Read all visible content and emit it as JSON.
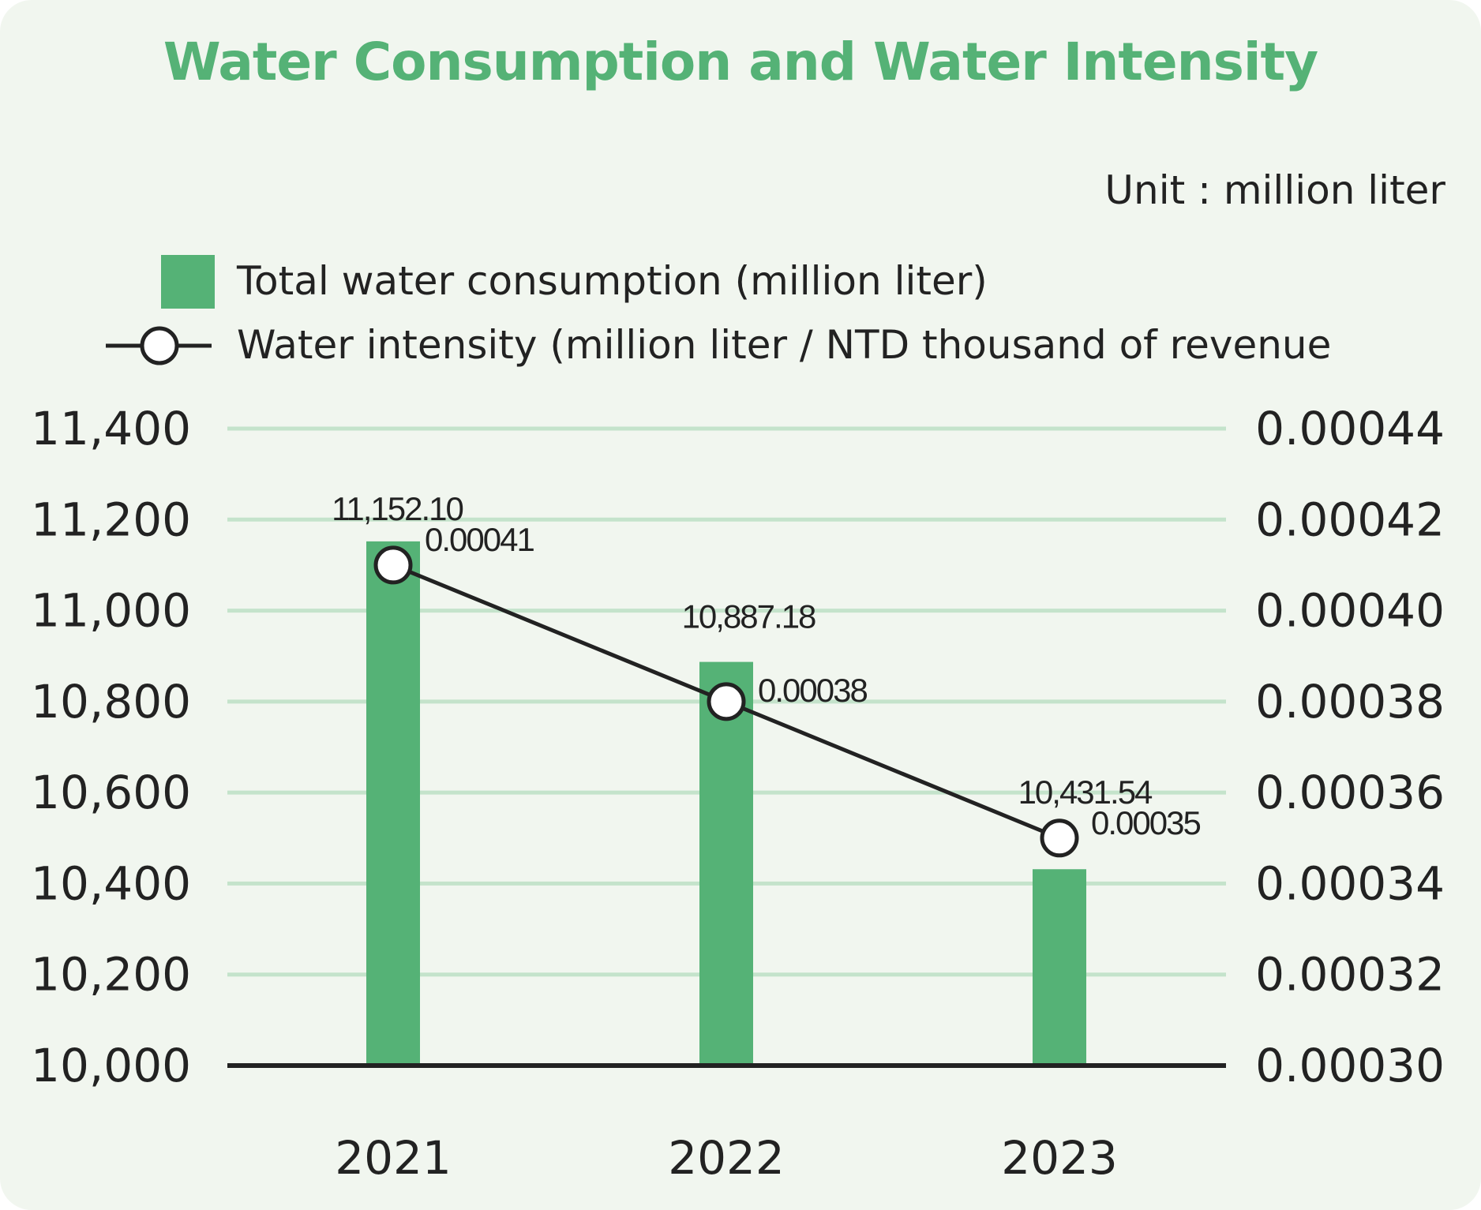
{
  "chart_data": {
    "type": "bar",
    "title": "Water Consumption and Water Intensity",
    "unit_note": "Unit : million liter",
    "categories": [
      "2021",
      "2022",
      "2023"
    ],
    "series": [
      {
        "name": "Total water consumption (million liter)",
        "type": "bar",
        "axis": "left",
        "values": [
          11152.1,
          10887.18,
          10431.54
        ],
        "labels": [
          "11,152.10",
          "10,887.18",
          "10,431.54"
        ],
        "color": "#55b276"
      },
      {
        "name": "Water intensity (million liter / NTD thousand of revenue",
        "type": "line",
        "axis": "right",
        "values": [
          0.00041,
          0.00038,
          0.00035
        ],
        "labels": [
          "0.00041",
          "0.00038",
          "0.00035"
        ],
        "color": "#222222",
        "marker": "open-circle"
      }
    ],
    "y_left": {
      "ylim": [
        10000,
        11400
      ],
      "ticks": [
        "10,000",
        "10,200",
        "10,400",
        "10,600",
        "10,800",
        "11,000",
        "11,200",
        "11,400"
      ]
    },
    "y_right": {
      "ylim": [
        0.0003,
        0.00044
      ],
      "ticks": [
        "0.00030",
        "0.00032",
        "0.00034",
        "0.00036",
        "0.00038",
        "0.00040",
        "0.00042",
        "0.00044"
      ]
    },
    "grid": true,
    "legend": "top-left",
    "grid_color": "#c4e3cb",
    "background": "#f1f6ef"
  }
}
